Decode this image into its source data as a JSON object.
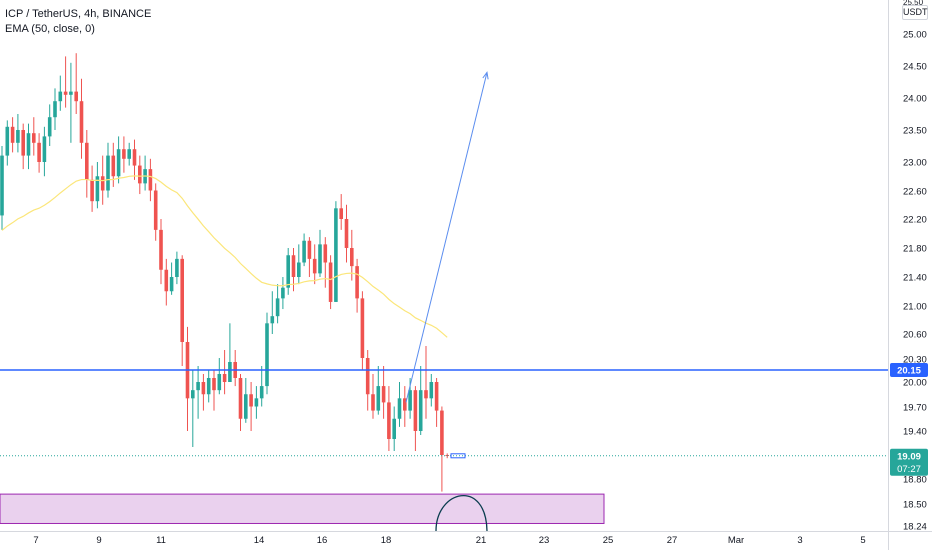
{
  "legend": {
    "symbol_line": "ICP / TetherUS, 4h, BINANCE",
    "indicator_line": "EMA (50, close, 0)"
  },
  "currency": "USDT",
  "colors": {
    "up": "#26a69a",
    "down": "#ef5350",
    "ema": "#fbe67a",
    "level": "#2962ff",
    "zone_fill": "#e1bee7",
    "zone_border": "#9c27b0",
    "projection": "#5b8def",
    "circle": "#0b3d4f",
    "last_price_bg": "#26a69a"
  },
  "chart_data": {
    "type": "candlestick",
    "price_axis": {
      "labels": [
        "25.00",
        "24.50",
        "24.00",
        "23.50",
        "23.00",
        "22.60",
        "22.20",
        "21.80",
        "21.40",
        "21.00",
        "20.60",
        "20.30",
        "20.00",
        "19.70",
        "19.40",
        "18.80",
        "18.50",
        "18.24"
      ],
      "top_partial_label": "25.50"
    },
    "time_axis": {
      "labels": [
        "7",
        "9",
        "11",
        "14",
        "16",
        "18",
        "21",
        "23",
        "25",
        "27",
        "Mar",
        "3",
        "5"
      ]
    },
    "level_line": {
      "price": 20.15,
      "label": "20.15"
    },
    "last_price": {
      "price": 19.09,
      "label": "19.09",
      "countdown": "07:27"
    },
    "projection_arrow": {
      "from_price": 19.75,
      "to_price": 24.4
    },
    "demand_zone": {
      "top": 18.62,
      "bottom": 18.27
    },
    "candles": [
      [
        22.25,
        23.1,
        23.25,
        22.05
      ],
      [
        23.1,
        23.55,
        23.65,
        22.95
      ],
      [
        23.55,
        23.3,
        23.7,
        23.15
      ],
      [
        23.3,
        23.5,
        23.75,
        23.15
      ],
      [
        23.5,
        23.1,
        23.6,
        22.9
      ],
      [
        23.1,
        23.45,
        23.6,
        22.9
      ],
      [
        23.45,
        23.3,
        23.7,
        23.1
      ],
      [
        23.3,
        23.0,
        23.45,
        22.85
      ],
      [
        23.0,
        23.4,
        23.55,
        22.8
      ],
      [
        23.4,
        23.7,
        23.9,
        23.25
      ],
      [
        23.7,
        23.95,
        24.15,
        23.5
      ],
      [
        23.95,
        24.1,
        24.35,
        23.8
      ],
      [
        24.1,
        24.05,
        24.65,
        23.85
      ],
      [
        24.05,
        24.1,
        24.55,
        23.3
      ],
      [
        24.1,
        23.95,
        24.7,
        23.75
      ],
      [
        23.95,
        23.3,
        24.3,
        23.05
      ],
      [
        23.3,
        22.75,
        23.5,
        22.5
      ],
      [
        22.75,
        22.45,
        22.95,
        22.3
      ],
      [
        22.45,
        22.8,
        23.0,
        22.35
      ],
      [
        22.8,
        22.6,
        23.1,
        22.4
      ],
      [
        22.6,
        23.1,
        23.3,
        22.5
      ],
      [
        23.1,
        22.8,
        23.3,
        22.65
      ],
      [
        22.8,
        23.2,
        23.4,
        22.7
      ],
      [
        23.2,
        23.05,
        23.4,
        22.85
      ],
      [
        23.05,
        23.2,
        23.3,
        22.95
      ],
      [
        23.2,
        22.95,
        23.35,
        22.75
      ],
      [
        22.95,
        22.7,
        23.1,
        22.55
      ],
      [
        22.7,
        22.9,
        23.1,
        22.6
      ],
      [
        22.9,
        22.6,
        23.05,
        22.45
      ],
      [
        22.6,
        22.05,
        22.7,
        21.9
      ],
      [
        22.05,
        21.5,
        22.2,
        21.3
      ],
      [
        21.5,
        21.2,
        21.65,
        21.0
      ],
      [
        21.2,
        21.4,
        21.6,
        21.15
      ],
      [
        21.4,
        21.65,
        21.75,
        21.3
      ],
      [
        21.65,
        20.5,
        21.7,
        20.2
      ],
      [
        20.5,
        19.8,
        20.7,
        19.4
      ],
      [
        19.8,
        19.9,
        20.15,
        19.2
      ],
      [
        19.9,
        20.0,
        20.2,
        19.55
      ],
      [
        20.0,
        19.85,
        20.1,
        19.65
      ],
      [
        19.85,
        20.05,
        20.15,
        19.75
      ],
      [
        20.05,
        19.9,
        20.15,
        19.65
      ],
      [
        19.9,
        20.1,
        20.3,
        19.85
      ],
      [
        20.1,
        20.0,
        20.4,
        19.85
      ],
      [
        20.0,
        20.25,
        20.75,
        20.05
      ],
      [
        20.25,
        20.05,
        20.4,
        19.95
      ],
      [
        20.05,
        19.55,
        20.1,
        19.4
      ],
      [
        19.55,
        19.85,
        20.05,
        19.5
      ],
      [
        19.85,
        19.7,
        20.0,
        19.4
      ],
      [
        19.7,
        19.8,
        19.95,
        19.55
      ],
      [
        19.8,
        19.95,
        20.2,
        19.7
      ],
      [
        19.95,
        20.75,
        20.9,
        19.85
      ],
      [
        20.75,
        20.85,
        21.2,
        20.6
      ],
      [
        20.85,
        21.1,
        21.3,
        20.75
      ],
      [
        21.1,
        21.25,
        21.4,
        20.95
      ],
      [
        21.25,
        21.7,
        21.8,
        21.15
      ],
      [
        21.7,
        21.4,
        21.8,
        21.2
      ],
      [
        21.4,
        21.6,
        21.85,
        21.3
      ],
      [
        21.6,
        21.9,
        22.0,
        21.55
      ],
      [
        21.9,
        21.65,
        21.95,
        21.4
      ],
      [
        21.65,
        21.45,
        21.85,
        21.3
      ],
      [
        21.45,
        21.85,
        22.05,
        21.4
      ],
      [
        21.85,
        21.6,
        21.95,
        21.25
      ],
      [
        21.6,
        21.05,
        21.7,
        20.95
      ],
      [
        21.05,
        22.35,
        22.45,
        21.05
      ],
      [
        22.35,
        22.2,
        22.55,
        22.05
      ],
      [
        22.2,
        21.8,
        22.4,
        21.6
      ],
      [
        21.8,
        21.55,
        22.05,
        21.35
      ],
      [
        21.55,
        21.1,
        21.65,
        20.9
      ],
      [
        21.1,
        20.3,
        21.2,
        20.15
      ],
      [
        20.3,
        19.85,
        20.4,
        19.65
      ],
      [
        19.85,
        19.65,
        20.1,
        19.55
      ],
      [
        19.65,
        19.95,
        20.2,
        19.6
      ],
      [
        19.95,
        19.75,
        20.2,
        19.55
      ],
      [
        19.75,
        19.3,
        19.95,
        19.15
      ],
      [
        19.3,
        19.55,
        19.7,
        19.15
      ],
      [
        19.55,
        19.8,
        20.0,
        19.45
      ],
      [
        19.8,
        19.65,
        19.95,
        19.45
      ],
      [
        19.65,
        19.9,
        20.05,
        19.55
      ],
      [
        19.9,
        19.4,
        19.95,
        19.15
      ],
      [
        19.4,
        19.9,
        20.2,
        19.35
      ],
      [
        19.9,
        19.8,
        20.45,
        19.55
      ],
      [
        19.8,
        20.0,
        20.1,
        19.7
      ],
      [
        20.0,
        19.65,
        20.05,
        19.45
      ],
      [
        19.65,
        19.1,
        19.7,
        18.65
      ],
      [
        19.1,
        19.09,
        19.12,
        19.06
      ]
    ]
  }
}
